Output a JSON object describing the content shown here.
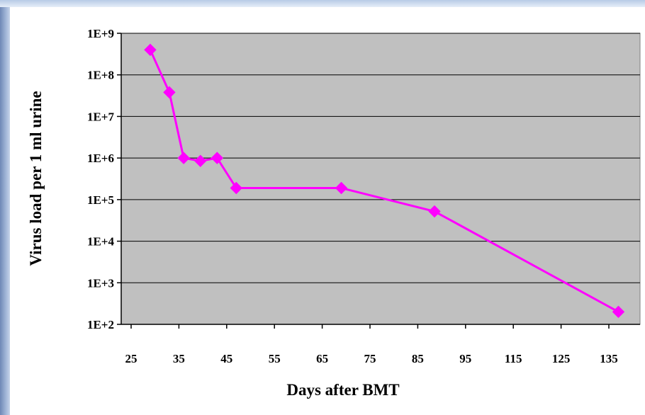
{
  "chart_data": {
    "type": "line",
    "xlabel": "Days after BMT",
    "ylabel": "Virus load per 1 ml urine",
    "y_scale": "log",
    "ylim": [
      100,
      1000000000
    ],
    "y_ticks": [
      "1E+2",
      "1E+3",
      "1E+4",
      "1E+5",
      "1E+6",
      "1E+7",
      "1E+8",
      "1E+9"
    ],
    "x_ticks": [
      "25",
      "35",
      "45",
      "55",
      "65",
      "75",
      "85",
      "95",
      "115",
      "125",
      "135"
    ],
    "grid": true,
    "series_color": "#ff00ff",
    "plot_background": "#c0c0c0",
    "points": [
      {
        "x": 29,
        "y": 400000000
      },
      {
        "x": 33,
        "y": 38000000
      },
      {
        "x": 36,
        "y": 1000000
      },
      {
        "x": 39.5,
        "y": 850000
      },
      {
        "x": 43,
        "y": 1000000
      },
      {
        "x": 47,
        "y": 190000
      },
      {
        "x": 69,
        "y": 190000
      },
      {
        "x": 88.5,
        "y": 52000
      },
      {
        "x": 137,
        "y": 200
      }
    ]
  }
}
